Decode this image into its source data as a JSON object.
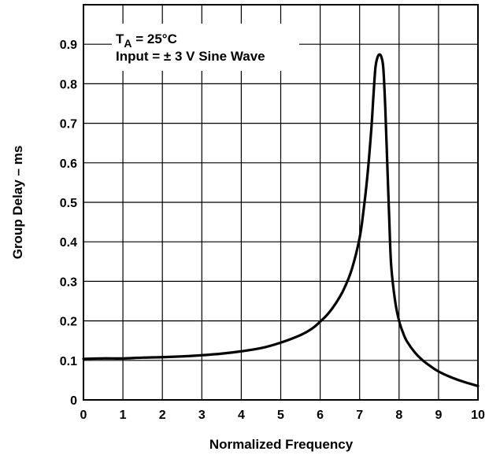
{
  "chart_data": {
    "type": "line",
    "xlabel": "Normalized Frequency",
    "ylabel": "Group Delay – ms",
    "xlim": [
      0,
      10
    ],
    "ylim": [
      0,
      1.0
    ],
    "x_ticks": [
      "0",
      "1",
      "2",
      "3",
      "4",
      "5",
      "6",
      "7",
      "8",
      "9",
      "10"
    ],
    "y_ticks": [
      "0",
      "0.1",
      "0.2",
      "0.3",
      "0.4",
      "0.5",
      "0.6",
      "0.7",
      "0.8",
      "0.9"
    ],
    "grid": true,
    "annotation": {
      "line1_main": "T",
      "line1_sub": "A",
      "line1_rest": " = 25°C",
      "line2": "Input = ± 3 V Sine Wave"
    },
    "series": [
      {
        "x": [
          0,
          0.5,
          1,
          1.5,
          2,
          2.5,
          3,
          3.5,
          4,
          4.5,
          5,
          5.5,
          5.8,
          6,
          6.2,
          6.4,
          6.6,
          6.8,
          7,
          7.1,
          7.2,
          7.3,
          7.35,
          7.4,
          7.45,
          7.5,
          7.55,
          7.6,
          7.65,
          7.7,
          7.75,
          7.8,
          7.9,
          8,
          8.1,
          8.2,
          8.4,
          8.6,
          8.8,
          9,
          9.3,
          9.6,
          10
        ],
        "y": [
          0.104,
          0.105,
          0.105,
          0.107,
          0.108,
          0.11,
          0.113,
          0.117,
          0.123,
          0.131,
          0.145,
          0.164,
          0.181,
          0.198,
          0.218,
          0.245,
          0.28,
          0.33,
          0.41,
          0.48,
          0.57,
          0.69,
          0.77,
          0.84,
          0.866,
          0.874,
          0.868,
          0.84,
          0.74,
          0.6,
          0.46,
          0.34,
          0.25,
          0.2,
          0.17,
          0.148,
          0.12,
          0.1,
          0.085,
          0.072,
          0.058,
          0.047,
          0.035
        ]
      }
    ]
  }
}
